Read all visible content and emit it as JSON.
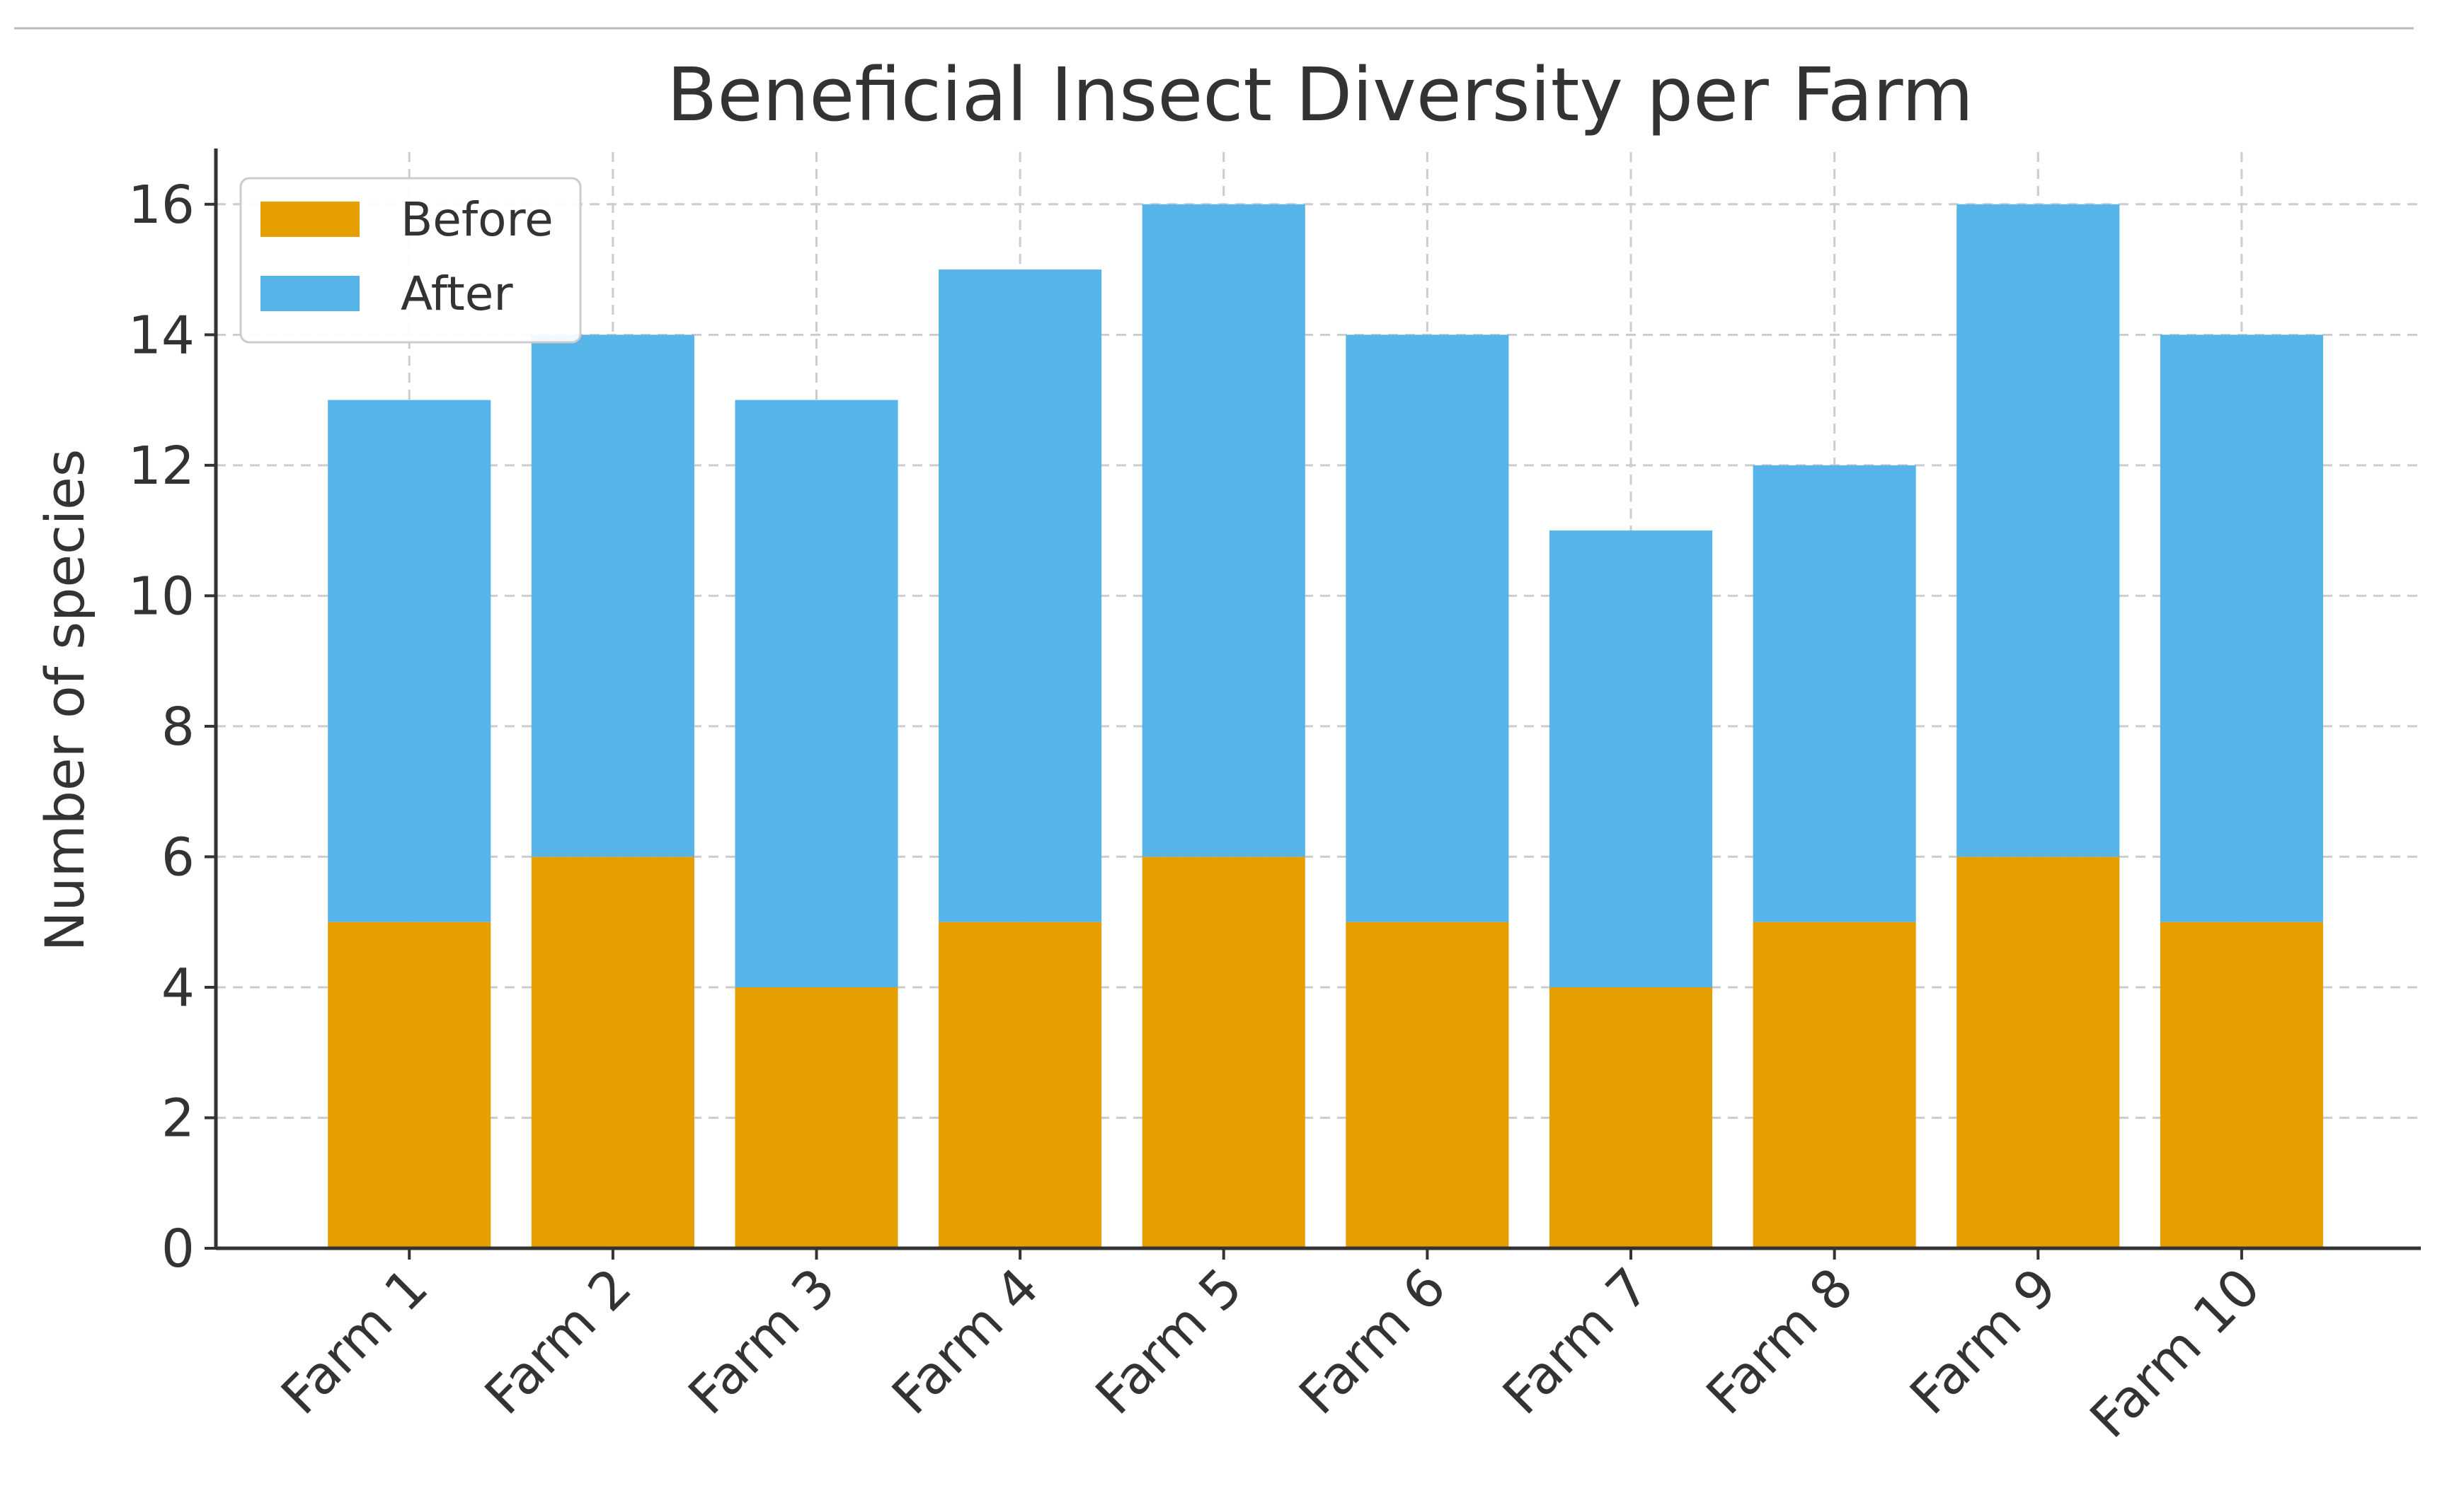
{
  "chart_data": {
    "type": "bar",
    "stacked": true,
    "title": "Beneficial Insect Diversity per Farm",
    "xlabel": "",
    "ylabel": "Number of species",
    "categories": [
      "Farm 1",
      "Farm 2",
      "Farm 3",
      "Farm 4",
      "Farm 5",
      "Farm 6",
      "Farm 7",
      "Farm 8",
      "Farm 9",
      "Farm 10"
    ],
    "series": [
      {
        "name": "Before",
        "color": "#E69F00",
        "values": [
          5,
          6,
          4,
          5,
          6,
          5,
          4,
          5,
          6,
          5
        ]
      },
      {
        "name": "After",
        "color": "#56B4E9",
        "values": [
          8,
          8,
          9,
          10,
          10,
          9,
          7,
          7,
          10,
          9
        ]
      }
    ],
    "ylim": [
      0,
      16.8
    ],
    "yticks": [
      0,
      2,
      4,
      6,
      8,
      10,
      12,
      14,
      16
    ],
    "grid": true,
    "legend_position": "top-left"
  }
}
